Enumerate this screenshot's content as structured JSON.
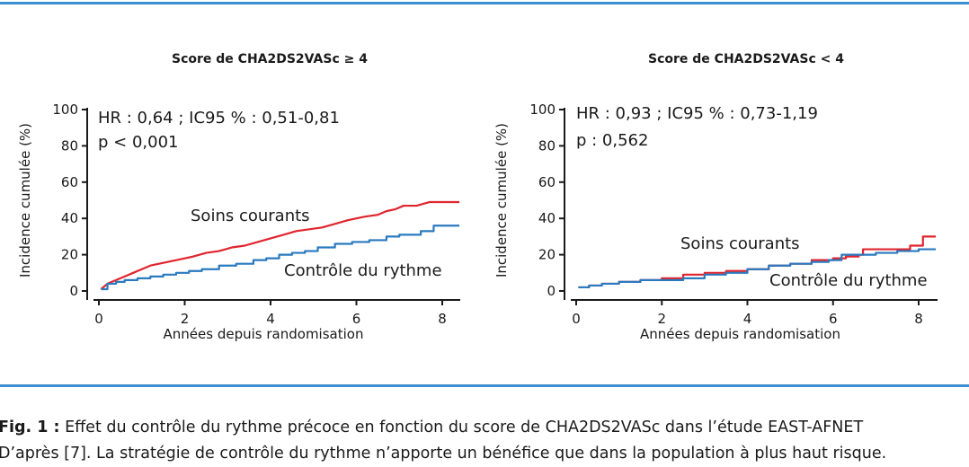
{
  "chart_data": [
    {
      "type": "line",
      "title": "Score de CHA2DS2VASc ≥ 4",
      "xlabel": "Années depuis randomisation",
      "ylabel": "Incidence cumulée (%)",
      "xlim": [
        0,
        8.3
      ],
      "ylim": [
        0,
        100
      ],
      "xticks": [
        "0",
        "2",
        "4",
        "6",
        "8"
      ],
      "yticks": [
        "0",
        "20",
        "40",
        "60",
        "80",
        "100"
      ],
      "annotations": [
        "HR : 0,64 ; IC95 % : 0,51-0,81",
        "p < 0,001"
      ],
      "series": [
        {
          "name": "Soins courants",
          "color": "#e0242d",
          "x": [
            0.05,
            0.2,
            0.4,
            0.6,
            0.8,
            1.0,
            1.2,
            1.4,
            1.6,
            1.8,
            2.0,
            2.2,
            2.5,
            2.8,
            3.1,
            3.4,
            3.7,
            4.0,
            4.3,
            4.6,
            4.9,
            5.2,
            5.5,
            5.8,
            6.2,
            6.5,
            6.7,
            6.9,
            7.1,
            7.4,
            7.7,
            8.0,
            8.4
          ],
          "y": [
            1,
            4,
            6,
            8,
            10,
            12,
            14,
            15,
            16,
            17,
            18,
            19,
            21,
            22,
            24,
            25,
            27,
            29,
            31,
            33,
            34,
            35,
            37,
            39,
            41,
            42,
            44,
            45,
            47,
            47,
            49,
            49,
            49
          ],
          "step": false
        },
        {
          "name": "Contrôle du rythme",
          "color": "#2a7abf",
          "x": [
            0.05,
            0.2,
            0.4,
            0.6,
            0.9,
            1.2,
            1.5,
            1.8,
            2.1,
            2.4,
            2.8,
            3.2,
            3.6,
            3.9,
            4.2,
            4.5,
            4.8,
            5.1,
            5.5,
            5.9,
            6.3,
            6.7,
            7.0,
            7.5,
            7.8,
            8.4
          ],
          "y": [
            1,
            4,
            5,
            6,
            7,
            8,
            9,
            10,
            11,
            12,
            14,
            15,
            17,
            18,
            20,
            21,
            22,
            24,
            26,
            27,
            28,
            30,
            31,
            33,
            36,
            36
          ],
          "step": true
        }
      ]
    },
    {
      "type": "line",
      "title": "Score de CHA2DS2VASc < 4",
      "xlabel": "Années depuis randomisation",
      "ylabel": "Incidence cumulée (%)",
      "xlim": [
        0,
        8.3
      ],
      "ylim": [
        0,
        100
      ],
      "xticks": [
        "0",
        "2",
        "4",
        "6",
        "8"
      ],
      "yticks": [
        "0",
        "20",
        "40",
        "60",
        "80",
        "100"
      ],
      "annotations": [
        "HR : 0,93 ; IC95 % : 0,73-1,19",
        "p : 0,562"
      ],
      "series": [
        {
          "name": "Soins courants",
          "color": "#e0242d",
          "x": [
            0.05,
            0.3,
            0.6,
            1.0,
            1.5,
            2.0,
            2.5,
            3.0,
            3.5,
            4.0,
            4.5,
            5.0,
            5.5,
            6.0,
            6.3,
            6.6,
            6.7,
            7.0,
            7.5,
            7.8,
            8.0,
            8.1,
            8.4
          ],
          "y": [
            2,
            3,
            4,
            5,
            6,
            7,
            9,
            10,
            11,
            12,
            14,
            15,
            17,
            18,
            19,
            20,
            23,
            23,
            23,
            25,
            25,
            30,
            30
          ],
          "step": true
        },
        {
          "name": "Contrôle du rythme",
          "color": "#2a7abf",
          "x": [
            0.05,
            0.3,
            0.6,
            1.0,
            1.5,
            2.0,
            2.5,
            3.0,
            3.5,
            4.0,
            4.5,
            5.0,
            5.5,
            5.9,
            6.2,
            6.6,
            7.0,
            7.5,
            8.0,
            8.4
          ],
          "y": [
            2,
            3,
            4,
            5,
            6,
            6,
            7,
            9,
            10,
            12,
            14,
            15,
            16,
            17,
            20,
            20,
            21,
            22,
            23,
            23
          ],
          "step": true
        }
      ]
    }
  ],
  "caption": {
    "label": "Fig. 1 :",
    "line1": " Effet du contrôle du rythme précoce en fonction du score de CHA2DS2VASc dans l’étude EAST-AFNET",
    "line2": "D’après [7]. La stratégie de contrôle du rythme n’apporte un bénéfice que dans la population à plus haut risque."
  },
  "colors": {
    "rule": "#3d8fd1",
    "red": "#e0242d",
    "blue": "#2a7abf"
  }
}
